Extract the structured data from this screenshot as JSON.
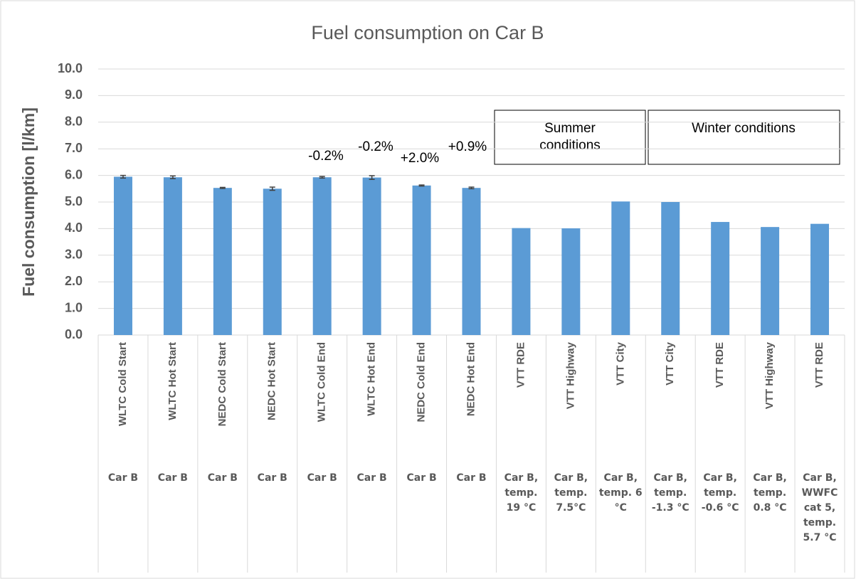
{
  "chart_data": {
    "type": "bar",
    "title": "Fuel consumption on Car B",
    "y_axis_label": "Fuel consumption [l/km]",
    "categories": [
      "WLTC Cold Start",
      "WLTC Hot Start",
      "NEDC Cold Start",
      "NEDC Hot Start",
      "WLTC Cold End",
      "WLTC Hot End",
      "NEDC Cold End",
      "NEDC Hot End",
      "VTT RDE",
      "VTT Highway",
      "VTT City",
      "VTT City",
      "VTT RDE",
      "VTT Highway",
      "VTT RDE"
    ],
    "groups": [
      "Car B",
      "Car B",
      "Car B",
      "Car B",
      "Car B",
      "Car B",
      "Car B",
      "Car B",
      "Car B, temp. 19 °C",
      "Car B, temp. 7.5°C",
      "Car B, temp. 6 °C",
      "Car B, temp. -1.3 °C",
      "Car B, temp. -0.6 °C",
      "Car B, temp. 0.8 °C",
      "Car B, WWFC cat 5, temp. 5.7 °C"
    ],
    "values": [
      5.95,
      5.93,
      5.53,
      5.5,
      5.93,
      5.92,
      5.62,
      5.53,
      4.02,
      4.01,
      5.02,
      5.0,
      4.25,
      4.06,
      4.18
    ],
    "errors": [
      0.05,
      0.05,
      0.02,
      0.06,
      0.03,
      0.07,
      0.02,
      0.03,
      null,
      null,
      null,
      null,
      null,
      null,
      null
    ],
    "color": "#5b9bd5",
    "ylim": [
      0,
      10
    ],
    "yticks": [
      {
        "value": 0,
        "label": "0.0"
      },
      {
        "value": 1,
        "label": "1.0"
      },
      {
        "value": 2,
        "label": "2.0"
      },
      {
        "value": 3,
        "label": "3.0"
      },
      {
        "value": 4,
        "label": "4.0"
      },
      {
        "value": 5,
        "label": "5.0"
      },
      {
        "value": 6,
        "label": "6.0"
      },
      {
        "value": 7,
        "label": "7.0"
      },
      {
        "value": 8,
        "label": "8.0"
      },
      {
        "value": 9,
        "label": "9.0"
      },
      {
        "value": 10,
        "label": "10.0"
      }
    ],
    "grid": true,
    "annotations": [
      "-0.2%",
      "-0.2%",
      "+2.0%",
      "+0.9%"
    ],
    "condition_labels": [
      "Summer conditions",
      "Winter conditions"
    ]
  }
}
